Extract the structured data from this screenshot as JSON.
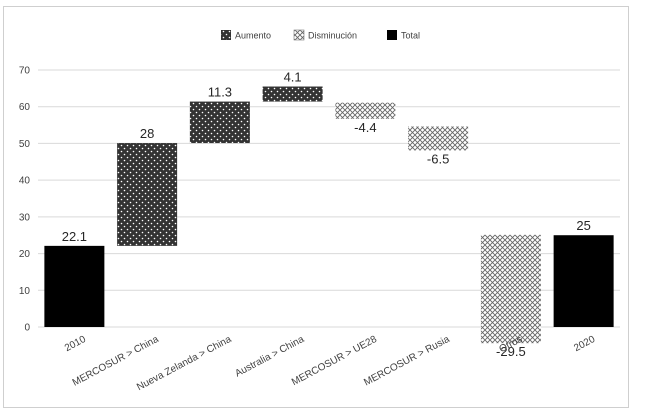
{
  "chart_data": {
    "type": "bar",
    "subtype": "waterfall",
    "title": "",
    "xlabel": "",
    "ylabel": "",
    "categories": [
      "2010",
      "MERCOSUR > China",
      "Nueva Zelanda > China",
      "Australia > China",
      "MERCOSUR > UE28",
      "MERCOSUR > Rusia",
      "Otros",
      "2020"
    ],
    "values": [
      22.1,
      28,
      11.3,
      4.1,
      -4.4,
      -6.5,
      -29.5,
      25
    ],
    "data_labels": [
      "22.1",
      "28",
      "11.3",
      "4.1",
      "-4.4",
      "-6.5",
      "-29.5",
      "25"
    ],
    "kinds": [
      "total",
      "increase",
      "increase",
      "increase",
      "decrease",
      "decrease",
      "decrease",
      "total"
    ],
    "bases": [
      0,
      22.1,
      50.1,
      61.4,
      61.1,
      54.6,
      25.1,
      0
    ],
    "ylim": [
      0,
      70
    ],
    "yticks": [
      "0",
      "10",
      "20",
      "30",
      "40",
      "50",
      "60",
      "70"
    ],
    "grid": true,
    "legend": {
      "position": "top",
      "items": [
        {
          "label": "Aumento",
          "kind": "increase"
        },
        {
          "label": "Disminución",
          "kind": "decrease"
        },
        {
          "label": "Total",
          "kind": "total"
        }
      ]
    },
    "colors": {
      "increase": "#3a3a3a",
      "decrease_pattern": "#555555",
      "total": "#000000",
      "grid": "#d9d9d9"
    }
  }
}
